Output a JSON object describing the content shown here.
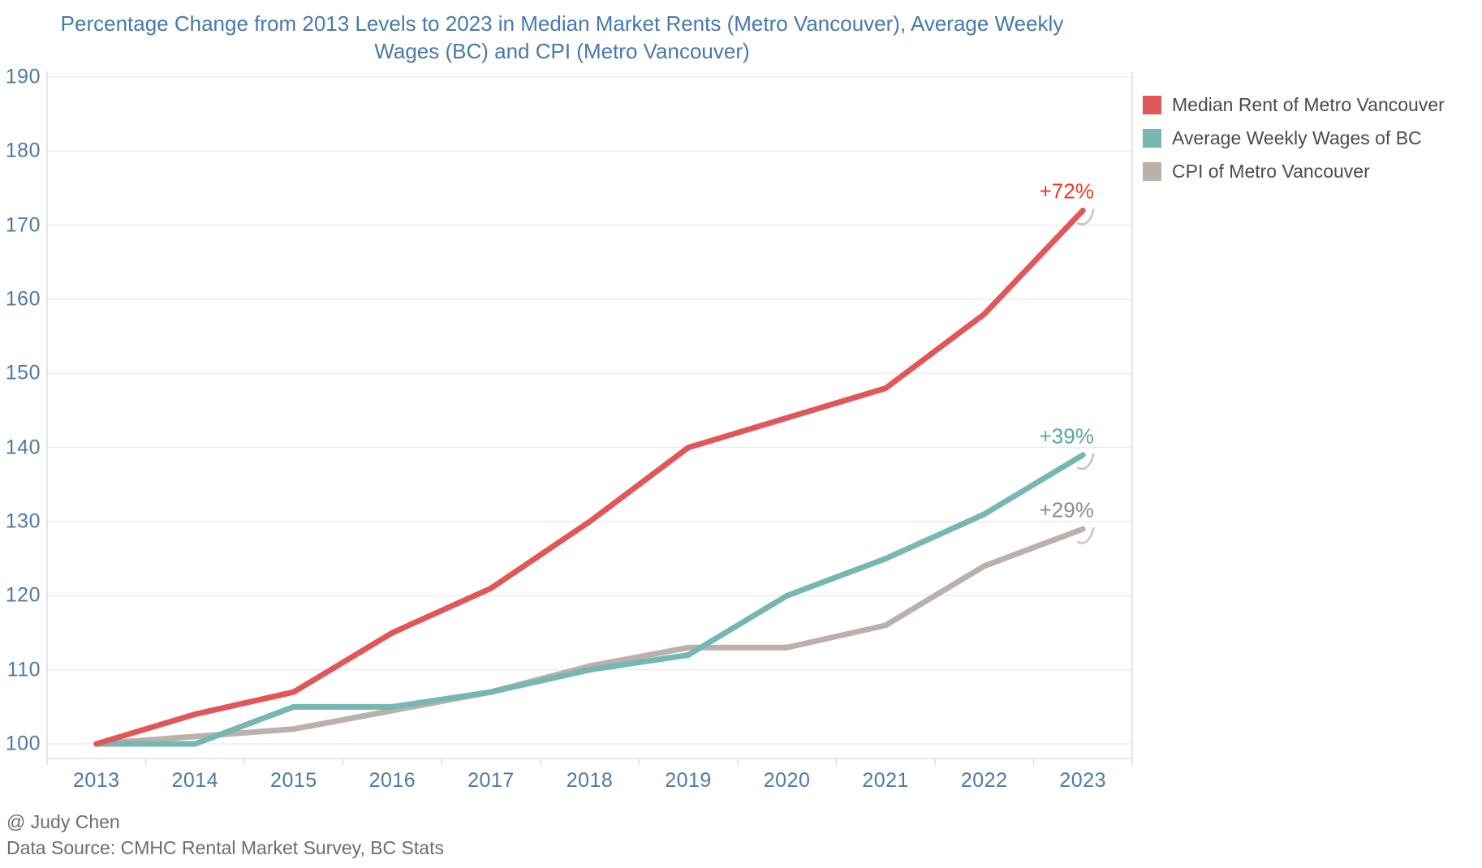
{
  "title": {
    "line1": "Percentage Change from 2013 Levels to 2023 in Median Market Rents (Metro Vancouver), Average Weekly",
    "line2": "Wages (BC) and CPI (Metro Vancouver)"
  },
  "footer": {
    "credit": "@ Judy Chen",
    "source": "Data Source: CMHC Rental Market Survey, BC Stats"
  },
  "colors": {
    "title_text": "#4779ab",
    "axis_text": "#4e79a7",
    "legend_text": "#4b4b4b",
    "footer_text": "#6d6d6d",
    "gridline": "#ececec",
    "axis_line": "#d9d9d9",
    "flick_mark": "#c9c4c0"
  },
  "chart_data": {
    "type": "line",
    "title": "Percentage Change from 2013 Levels to 2023 in Median Market Rents (Metro Vancouver), Average Weekly Wages (BC) and CPI (Metro Vancouver)",
    "categories": [
      "2013",
      "2014",
      "2015",
      "2016",
      "2017",
      "2018",
      "2019",
      "2020",
      "2021",
      "2022",
      "2023"
    ],
    "y_ticks": [
      100,
      110,
      120,
      130,
      140,
      150,
      160,
      170,
      180,
      190
    ],
    "ylim": [
      100,
      190
    ],
    "baseline": 100,
    "grid": true,
    "legend_position": "top-right",
    "series": [
      {
        "id": "median-rent",
        "name": "Median Rent of Metro Vancouver",
        "color": "#e15759",
        "values": [
          100,
          104,
          107,
          115,
          121,
          130,
          140,
          144,
          148,
          158,
          172
        ],
        "end_label": "+72%",
        "end_label_color": "#f03a21"
      },
      {
        "id": "weekly-wages",
        "name": "Average Weekly Wages of BC",
        "color": "#76b7b2",
        "values": [
          100,
          100,
          105,
          105,
          107,
          110,
          112,
          120,
          125,
          131,
          139
        ],
        "end_label": "+39%",
        "end_label_color": "#56a8a2"
      },
      {
        "id": "cpi",
        "name": "CPI of Metro Vancouver",
        "color": "#bab0ac",
        "values": [
          100,
          101,
          102,
          104.5,
          107,
          110.5,
          113,
          113,
          116,
          124,
          129
        ],
        "end_label": "+29%",
        "end_label_color": "#8b8b8b"
      }
    ]
  }
}
